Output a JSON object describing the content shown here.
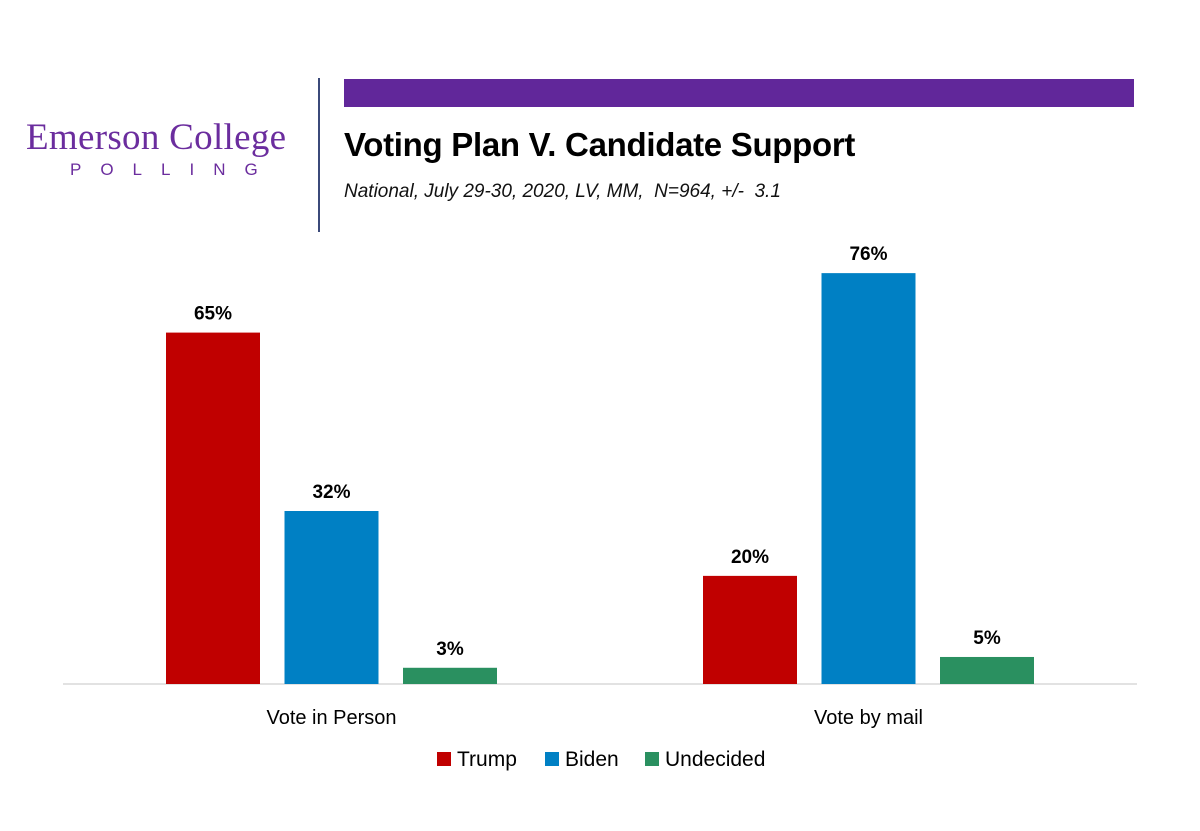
{
  "header": {
    "logo_name": "Emerson College",
    "logo_sub": "POLLING",
    "accent_color": "#61279a",
    "logo_color": "#6b2d9e"
  },
  "chart_data": {
    "type": "bar",
    "title": "Voting Plan V. Candidate Support",
    "subtitle": "National, July 29-30, 2020, LV, MM,  N=964, +/-  3.1",
    "categories": [
      "Vote in Person",
      "Vote by mail"
    ],
    "series": [
      {
        "name": "Trump",
        "color": "#c00000",
        "values": [
          65,
          20
        ],
        "labels": [
          "65%",
          "20%"
        ]
      },
      {
        "name": "Biden",
        "color": "#0080c4",
        "values": [
          32,
          76
        ],
        "labels": [
          "32%",
          "76%"
        ]
      },
      {
        "name": "Undecided",
        "color": "#2a9060",
        "values": [
          3,
          5
        ],
        "labels": [
          "3%",
          "5%"
        ]
      }
    ],
    "xlabel": "",
    "ylabel": "",
    "ylim": [
      0,
      80
    ],
    "grid": false,
    "y_axis_visible": false,
    "legend_position": "bottom-center",
    "unit": "%"
  }
}
